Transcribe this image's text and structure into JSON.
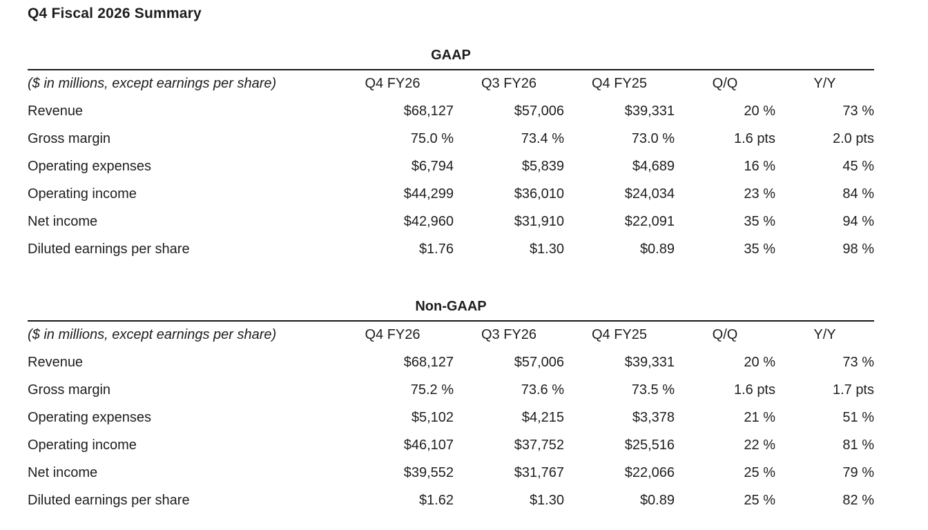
{
  "page": {
    "title": "Q4 Fiscal 2026 Summary"
  },
  "colors": {
    "text": "#1d1d1d",
    "rule": "#161616",
    "background": "#ffffff"
  },
  "tables": [
    {
      "section_title": "GAAP",
      "unit_note": "($ in millions, except earnings per share)",
      "columns": [
        "Q4 FY26",
        "Q3 FY26",
        "Q4 FY25",
        "Q/Q",
        "Y/Y"
      ],
      "rows": [
        {
          "label": "Revenue",
          "values": [
            "$68,127",
            "$57,006",
            "$39,331",
            "20 %",
            "73 %"
          ]
        },
        {
          "label": "Gross margin",
          "values": [
            "75.0 %",
            "73.4 %",
            "73.0 %",
            "1.6 pts",
            "2.0 pts"
          ]
        },
        {
          "label": "Operating expenses",
          "values": [
            "$6,794",
            "$5,839",
            "$4,689",
            "16 %",
            "45 %"
          ]
        },
        {
          "label": "Operating income",
          "values": [
            "$44,299",
            "$36,010",
            "$24,034",
            "23 %",
            "84 %"
          ]
        },
        {
          "label": "Net income",
          "values": [
            "$42,960",
            "$31,910",
            "$22,091",
            "35 %",
            "94 %"
          ]
        },
        {
          "label": "Diluted earnings per share",
          "values": [
            "$1.76",
            "$1.30",
            "$0.89",
            "35 %",
            "98 %"
          ]
        }
      ]
    },
    {
      "section_title": "Non-GAAP",
      "unit_note": "($ in millions, except earnings per share)",
      "columns": [
        "Q4 FY26",
        "Q3 FY26",
        "Q4 FY25",
        "Q/Q",
        "Y/Y"
      ],
      "rows": [
        {
          "label": "Revenue",
          "values": [
            "$68,127",
            "$57,006",
            "$39,331",
            "20 %",
            "73 %"
          ]
        },
        {
          "label": "Gross margin",
          "values": [
            "75.2 %",
            "73.6 %",
            "73.5 %",
            "1.6 pts",
            "1.7 pts"
          ]
        },
        {
          "label": "Operating expenses",
          "values": [
            "$5,102",
            "$4,215",
            "$3,378",
            "21 %",
            "51 %"
          ]
        },
        {
          "label": "Operating income",
          "values": [
            "$46,107",
            "$37,752",
            "$25,516",
            "22 %",
            "81 %"
          ]
        },
        {
          "label": "Net income",
          "values": [
            "$39,552",
            "$31,767",
            "$22,066",
            "25 %",
            "79 %"
          ]
        },
        {
          "label": "Diluted earnings per share",
          "values": [
            "$1.62",
            "$1.30",
            "$0.89",
            "25 %",
            "82 %"
          ]
        }
      ]
    }
  ]
}
